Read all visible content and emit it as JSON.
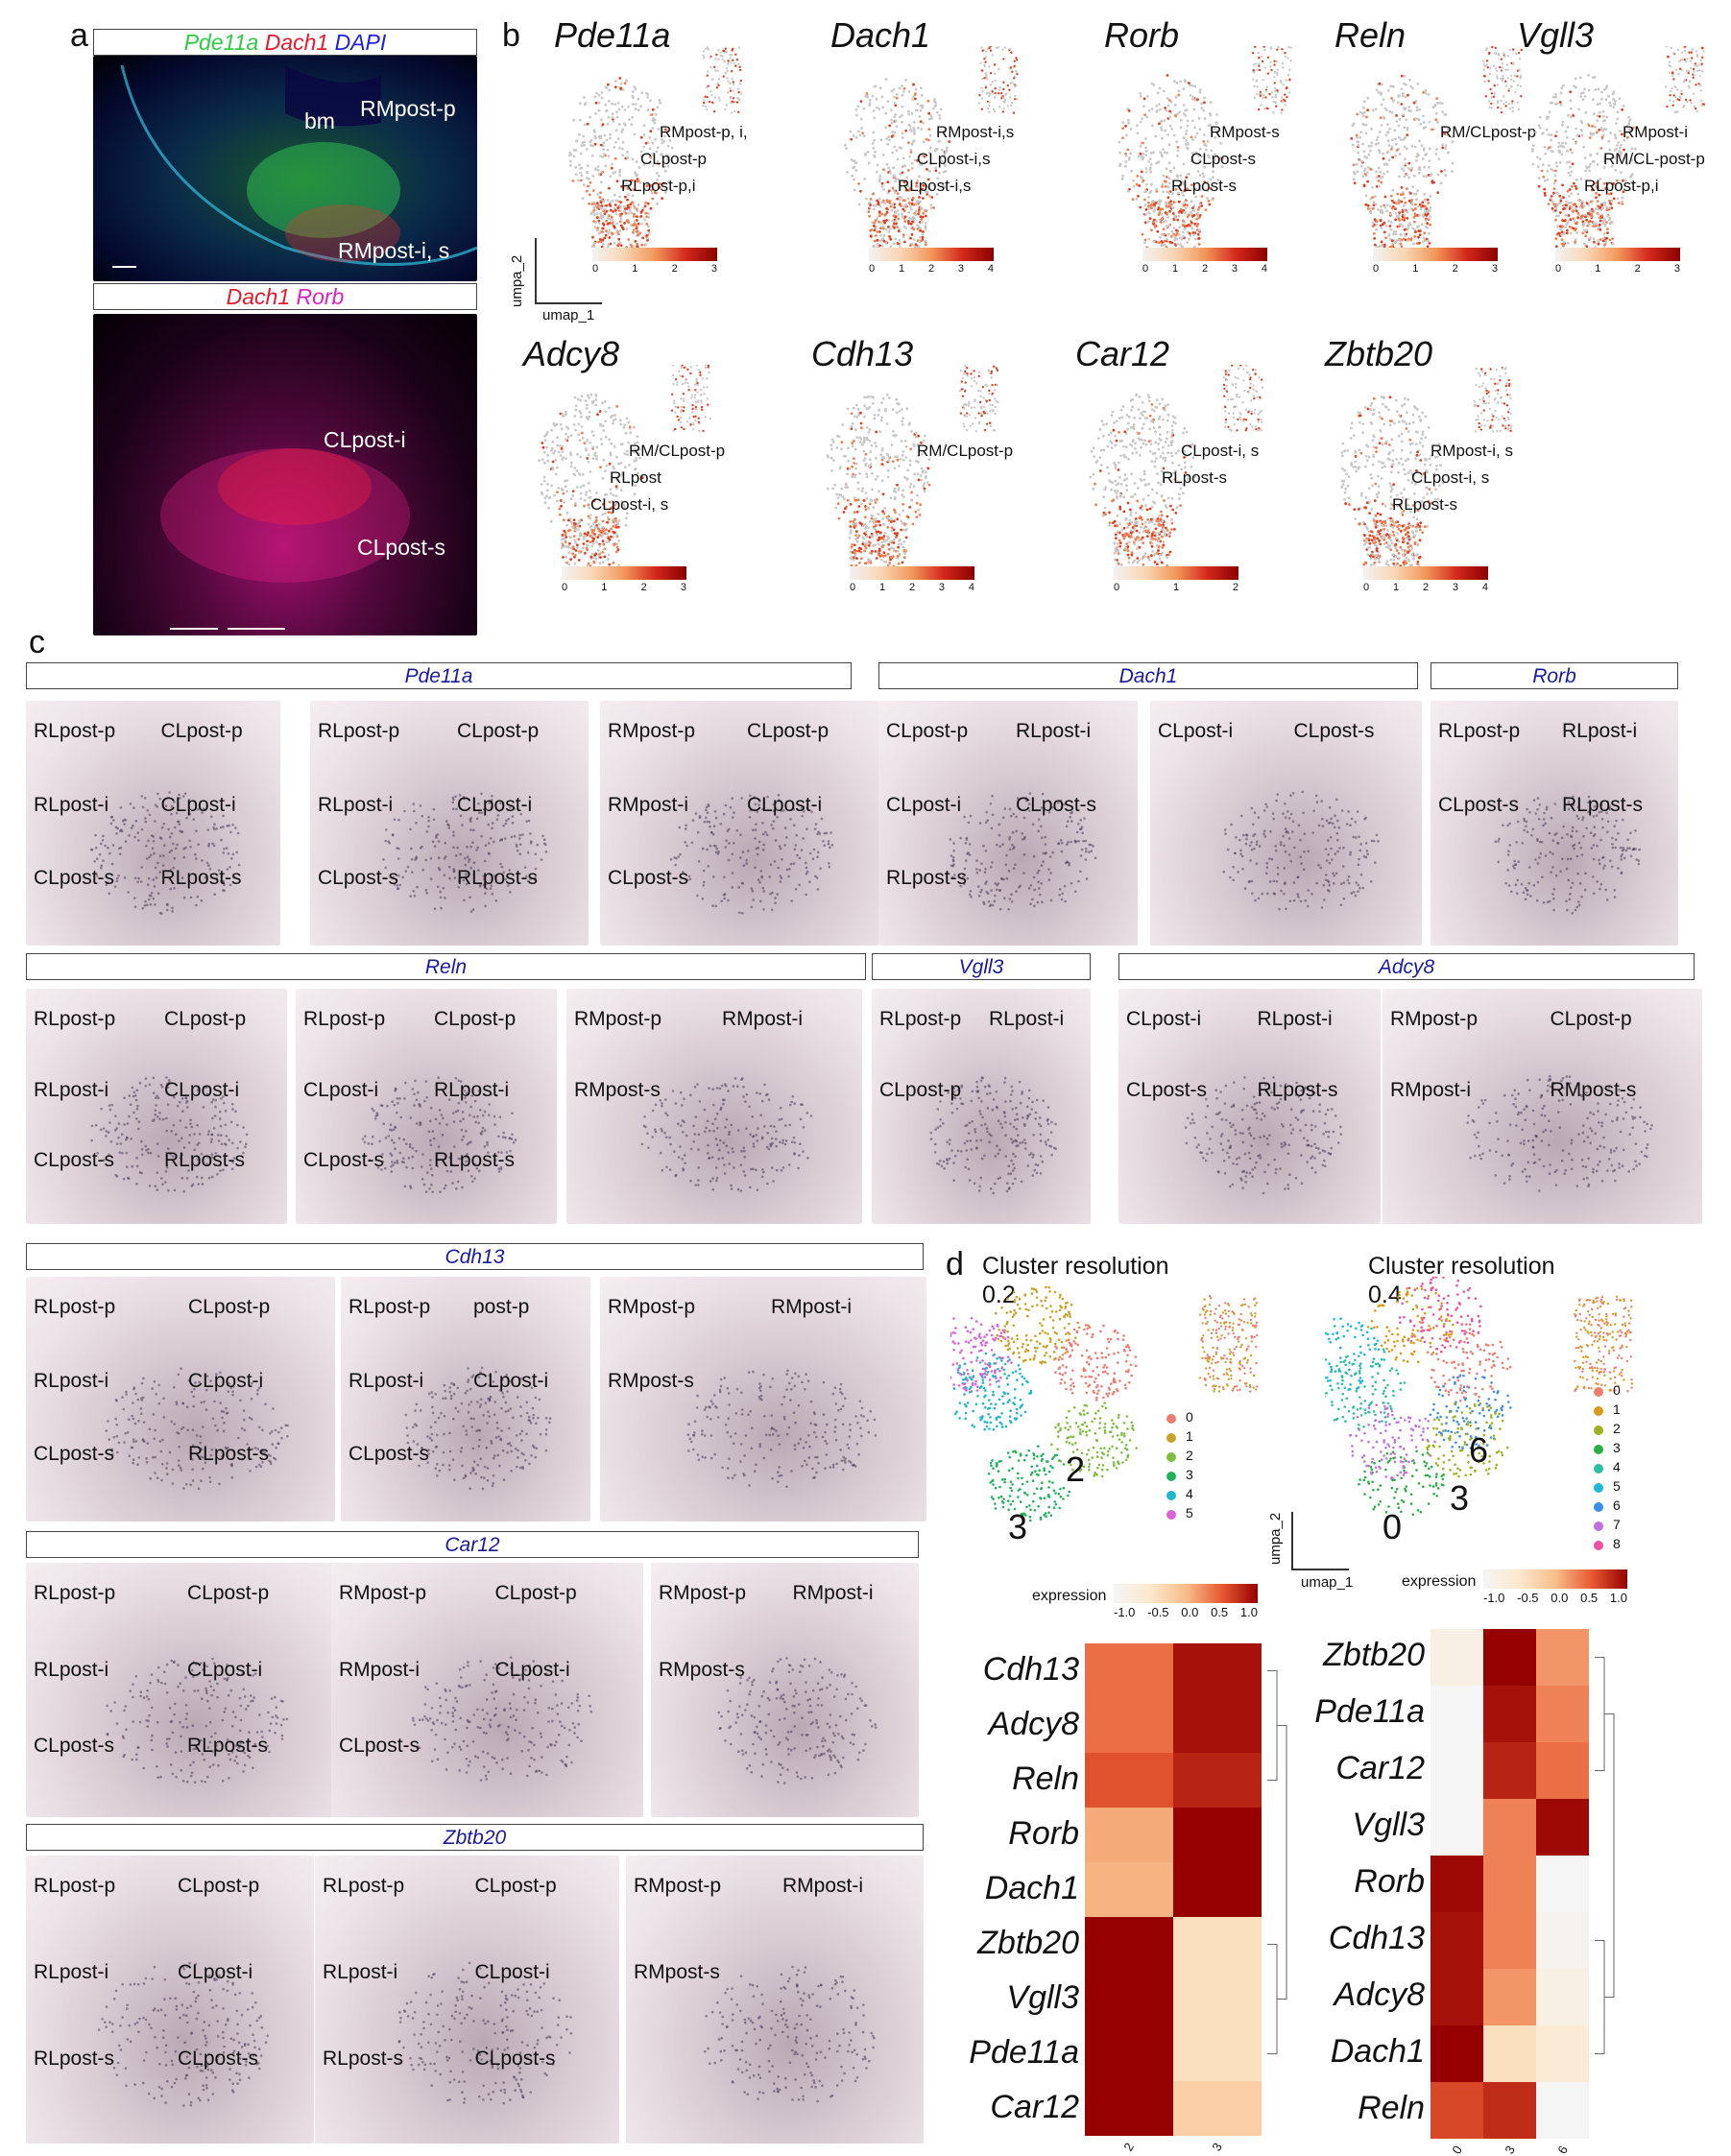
{
  "panels": {
    "a": "a",
    "b": "b",
    "c": "c",
    "d": "d"
  },
  "panel_a": {
    "top_legend": [
      {
        "text": "Pde11a",
        "color": "#2ecc40"
      },
      {
        "text": " Dach1",
        "color": "#e8192c"
      },
      {
        "text": " DAPI",
        "color": "#2222dd"
      }
    ],
    "bottom_legend": [
      {
        "text": "Dach1",
        "color": "#e8192c"
      },
      {
        "text": " Rorb",
        "color": "#e020c0"
      }
    ],
    "top_labels": [
      "bm",
      "RMpost-p",
      "RMpost-i, s"
    ],
    "bottom_labels": [
      "CLpost-i",
      "CLpost-s"
    ]
  },
  "panel_b": {
    "axis_y": "umpa_2",
    "axis_x": "umap_1",
    "genes": [
      {
        "name": "Pde11a",
        "labels": [
          "RMpost-p, i,",
          "CLpost-p",
          "RLpost-p,i"
        ],
        "ticks": [
          "0",
          "1",
          "2",
          "3"
        ]
      },
      {
        "name": "Dach1",
        "labels": [
          "RMpost-i,s",
          "CLpost-i,s",
          "RLpost-i,s"
        ],
        "ticks": [
          "0",
          "1",
          "2",
          "3",
          "4"
        ]
      },
      {
        "name": "Rorb",
        "labels": [
          "RMpost-s",
          "CLpost-s",
          "RLpost-s"
        ],
        "ticks": [
          "0",
          "1",
          "2",
          "3",
          "4"
        ]
      },
      {
        "name": "Reln",
        "labels": [
          "RM/CLpost-p"
        ],
        "ticks": [
          "0",
          "1",
          "2",
          "3"
        ]
      },
      {
        "name": "Vgll3",
        "labels": [
          "RMpost-i",
          "RM/CL-post-p",
          "RLpost-p,i"
        ],
        "ticks": [
          "0",
          "1",
          "2",
          "3"
        ]
      },
      {
        "name": "Adcy8",
        "labels": [
          "RM/CLpost-p",
          "RLpost",
          "CLpost-i, s"
        ],
        "ticks": [
          "0",
          "1",
          "2",
          "3"
        ]
      },
      {
        "name": "Cdh13",
        "labels": [
          "RM/CLpost-p"
        ],
        "ticks": [
          "0",
          "1",
          "2",
          "3",
          "4"
        ]
      },
      {
        "name": "Car12",
        "labels": [
          "CLpost-i, s",
          "RLpost-s"
        ],
        "ticks": [
          "0",
          "1",
          "2"
        ]
      },
      {
        "name": "Zbtb20",
        "labels": [
          "RMpost-i, s",
          "CLpost-i, s",
          "RLpost-s"
        ],
        "ticks": [
          "0",
          "1",
          "2",
          "3",
          "4"
        ]
      }
    ]
  },
  "panel_c": {
    "rows": [
      {
        "gene": "Pde11a",
        "sections": [
          [
            "RLpost-p",
            "CLpost-p",
            "RLpost-i",
            "CLpost-i",
            "CLpost-s",
            "RLpost-s"
          ],
          [
            "RLpost-p",
            "CLpost-p",
            "RLpost-i",
            "CLpost-i",
            "CLpost-s",
            "RLpost-s"
          ],
          [
            "RMpost-p",
            "CLpost-p",
            "RMpost-i",
            "CLpost-i",
            "CLpost-s"
          ]
        ]
      },
      {
        "gene": "Dach1",
        "sections": [
          [
            "CLpost-p",
            "RLpost-i",
            "CLpost-i",
            "CLpost-s",
            "RLpost-s"
          ],
          [
            "CLpost-i",
            "CLpost-s"
          ]
        ]
      },
      {
        "gene": "Rorb",
        "sections": [
          [
            "RLpost-p",
            "RLpost-i",
            "CLpost-s",
            "RLpost-s"
          ]
        ]
      },
      {
        "gene": "Reln",
        "sections": [
          [
            "RLpost-p",
            "CLpost-p",
            "RLpost-i",
            "CLpost-i",
            "CLpost-s",
            "RLpost-s"
          ],
          [
            "RLpost-p",
            "CLpost-p",
            "CLpost-i",
            "RLpost-i",
            "CLpost-s",
            "RLpost-s"
          ],
          [
            "RMpost-p",
            "RMpost-i",
            "RMpost-s"
          ]
        ]
      },
      {
        "gene": "Vgll3",
        "sections": [
          [
            "RLpost-p",
            "RLpost-i",
            "CLpost-p"
          ]
        ]
      },
      {
        "gene": "Adcy8",
        "sections": [
          [
            "CLpost-i",
            "RLpost-i",
            "CLpost-s",
            "RLpost-s"
          ],
          [
            "RMpost-p",
            "CLpost-p",
            "RMpost-i",
            "RMpost-s"
          ]
        ]
      },
      {
        "gene": "Cdh13",
        "sections": [
          [
            "RLpost-p",
            "CLpost-p",
            "RLpost-i",
            "CLpost-i",
            "CLpost-s",
            "RLpost-s"
          ],
          [
            "RLpost-p",
            "post-p",
            "RLpost-i",
            "CLpost-i",
            "CLpost-s"
          ],
          [
            "RMpost-p",
            "RMpost-i",
            "RMpost-s"
          ]
        ]
      },
      {
        "gene": "Car12",
        "sections": [
          [
            "RLpost-p",
            "CLpost-p",
            "RLpost-i",
            "CLpost-i",
            "CLpost-s",
            "RLpost-s"
          ],
          [
            "RMpost-p",
            "CLpost-p",
            "RMpost-i",
            "CLpost-i",
            "CLpost-s"
          ],
          [
            "RMpost-p",
            "RMpost-i",
            "RMpost-s"
          ]
        ]
      },
      {
        "gene": "Zbtb20",
        "sections": [
          [
            "RLpost-p",
            "CLpost-p",
            "RLpost-i",
            "CLpost-i",
            "RLpost-s",
            "CLpost-s"
          ],
          [
            "RLpost-p",
            "CLpost-p",
            "RLpost-i",
            "CLpost-i",
            "RLpost-s",
            "CLpost-s"
          ],
          [
            "RMpost-p",
            "RMpost-i",
            "RMpost-s"
          ]
        ]
      }
    ]
  },
  "panel_d": {
    "left_title": [
      "Cluster resolution",
      "0.2"
    ],
    "right_title": [
      "Cluster resolution",
      "0.4"
    ],
    "left_legend": [
      "0",
      "1",
      "2",
      "3",
      "4",
      "5"
    ],
    "left_colors": [
      "#f07b6f",
      "#c9a227",
      "#7fbf3f",
      "#20b35a",
      "#1fb8c8",
      "#e060d8"
    ],
    "right_legend": [
      "0",
      "1",
      "2",
      "3",
      "4",
      "5",
      "6",
      "7",
      "8"
    ],
    "right_colors": [
      "#f07b6f",
      "#d89a1a",
      "#a0b020",
      "#2ab040",
      "#2cc0a0",
      "#20b8d8",
      "#3a8ee8",
      "#c070e0",
      "#f050a0"
    ],
    "left_umap_labels": [
      "2",
      "3"
    ],
    "right_umap_labels": [
      "6",
      "3",
      "0"
    ],
    "axis_y": "umpa_2",
    "axis_x": "umap_1",
    "expression_label": "expression",
    "cbar_ticks": [
      "-1.0",
      "-0.5",
      "0.0",
      "0.5",
      "1.0"
    ],
    "left_heatmap": {
      "genes": [
        "Cdh13",
        "Adcy8",
        "Reln",
        "Rorb",
        "Dach1",
        "Zbtb20",
        "Vgll3",
        "Pde11a",
        "Car12"
      ],
      "columns": [
        "2",
        "3"
      ],
      "values": [
        [
          0.4,
          0.9
        ],
        [
          0.4,
          0.9
        ],
        [
          0.55,
          0.8
        ],
        [
          0.1,
          1.0
        ],
        [
          0.05,
          1.0
        ],
        [
          1.0,
          -0.4
        ],
        [
          1.0,
          -0.4
        ],
        [
          1.0,
          -0.4
        ],
        [
          1.0,
          -0.2
        ]
      ]
    },
    "right_heatmap": {
      "genes": [
        "Zbtb20",
        "Pde11a",
        "Car12",
        "Vgll3",
        "Rorb",
        "Cdh13",
        "Adcy8",
        "Dach1",
        "Reln"
      ],
      "columns": [
        "0",
        "3",
        "6"
      ],
      "values": [
        [
          -0.8,
          1.0,
          0.2
        ],
        [
          -1.0,
          0.9,
          0.3
        ],
        [
          -1.0,
          0.8,
          0.4
        ],
        [
          -1.0,
          0.3,
          0.95
        ],
        [
          0.95,
          0.3,
          -1.0
        ],
        [
          0.9,
          0.3,
          -0.9
        ],
        [
          0.9,
          0.2,
          -0.8
        ],
        [
          1.0,
          -0.4,
          -0.6
        ],
        [
          0.6,
          0.75,
          -1.0
        ]
      ]
    }
  }
}
